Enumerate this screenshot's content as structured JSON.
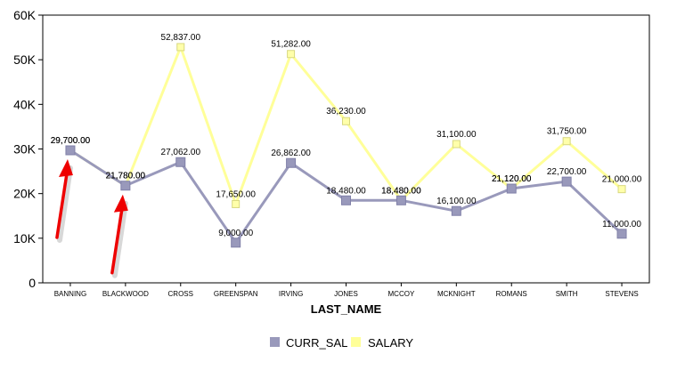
{
  "chart_data": {
    "type": "line",
    "xlabel": "LAST_NAME",
    "ylabel": "",
    "ylim": [
      0,
      60000
    ],
    "yticks": [
      0,
      10000,
      20000,
      30000,
      40000,
      50000,
      60000
    ],
    "ytick_labels": [
      "0",
      "10K",
      "20K",
      "30K",
      "40K",
      "50K",
      "60K"
    ],
    "categories": [
      "BANNING",
      "BLACKWOOD",
      "CROSS",
      "GREENSPAN",
      "IRVING",
      "JONES",
      "MCCOY",
      "MCKNIGHT",
      "ROMANS",
      "SMITH",
      "STEVENS"
    ],
    "series": [
      {
        "name": "CURR_SAL",
        "color": "#9999bb",
        "values": [
          29700,
          21780,
          27062,
          9000,
          26862,
          18480,
          18480,
          16100,
          21120,
          22700,
          11000
        ],
        "labels": [
          "29,700.00",
          "21,780.00",
          "27,062.00",
          "9,000.00",
          "26,862.00",
          "18,480.00",
          "18,480.00",
          "16,100.00",
          "21,120.00",
          "22,700.00",
          "11,000.00"
        ]
      },
      {
        "name": "SALARY",
        "color": "#ffff99",
        "values": [
          29700,
          21780,
          52837,
          17650,
          51282,
          36230,
          18480,
          31100,
          21120,
          31750,
          21000
        ],
        "labels": [
          "29,700.00",
          "21,780.00",
          "52,837.00",
          "17,650.00",
          "51,282.00",
          "36,230.00",
          "18,480.00",
          "31,100.00",
          "21,120.00",
          "31,750.00",
          "21,000.00"
        ]
      }
    ],
    "legend": "bottom",
    "grid": false,
    "annotations": [
      {
        "type": "arrow",
        "color": "#ee0000",
        "points_to": "BANNING"
      },
      {
        "type": "arrow",
        "color": "#ee0000",
        "points_to": "BLACKWOOD"
      }
    ]
  }
}
